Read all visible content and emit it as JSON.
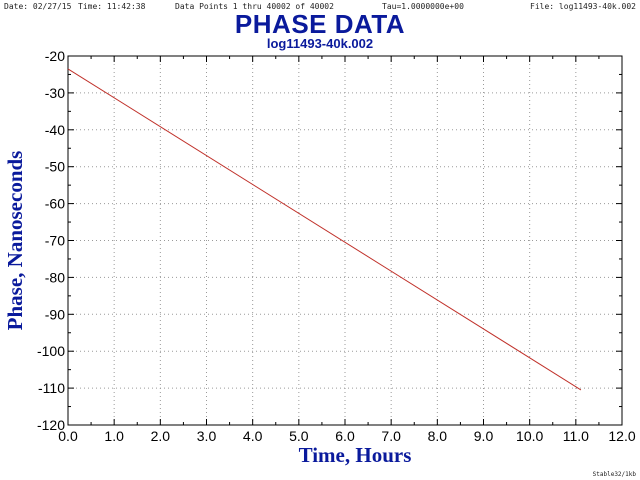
{
  "header": {
    "date": "Date: 02/27/15",
    "time": "Time: 11:42:38",
    "points": "Data Points 1 thru 40002 of 40002",
    "tau": "Tau=1.0000000e+00",
    "file": "File: log11493-40k.002"
  },
  "footer": "Stable32/1kb",
  "colors": {
    "title": "#0a1a9c",
    "series": "#c0312a",
    "grid": "#9a9a9a"
  },
  "chart_data": {
    "type": "line",
    "title": "PHASE DATA",
    "subtitle": "log11493-40k.002",
    "xlabel": "Time, Hours",
    "ylabel": "Phase, Nanoseconds",
    "xlim": [
      0.0,
      12.0
    ],
    "ylim": [
      -120,
      -20
    ],
    "xticks": [
      0.0,
      1.0,
      2.0,
      3.0,
      4.0,
      5.0,
      6.0,
      7.0,
      8.0,
      9.0,
      10.0,
      11.0,
      12.0
    ],
    "xtick_labels": [
      "0.0",
      "1.0",
      "2.0",
      "3.0",
      "4.0",
      "5.0",
      "6.0",
      "7.0",
      "8.0",
      "9.0",
      "10.0",
      "11.0",
      "12.0"
    ],
    "yticks": [
      -20,
      -30,
      -40,
      -50,
      -60,
      -70,
      -80,
      -90,
      -100,
      -110,
      -120
    ],
    "ytick_labels": [
      "-20",
      "-30",
      "-40",
      "-50",
      "-60",
      "-70",
      "-80",
      "-90",
      "-100",
      "-110",
      "-120"
    ],
    "grid": true,
    "series": [
      {
        "x": [
          0.0,
          11.11
        ],
        "y": [
          -23.5,
          -110.5
        ]
      }
    ]
  }
}
